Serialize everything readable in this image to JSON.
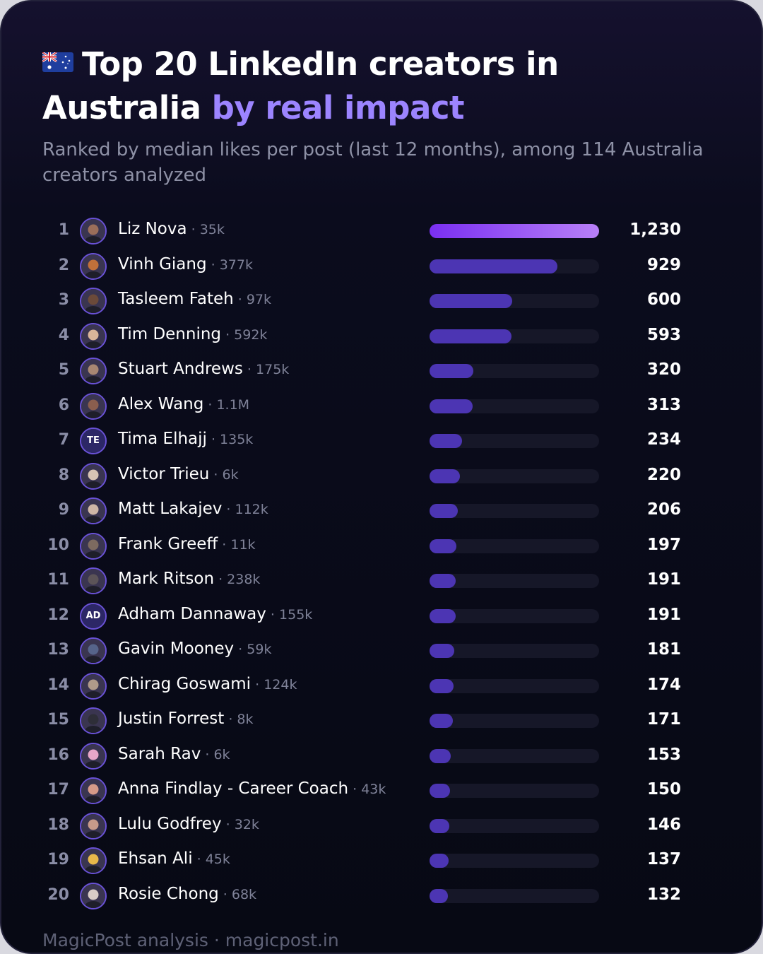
{
  "header": {
    "flag_icon": "australia-flag",
    "title_main": "Top 20 LinkedIn creators in Australia",
    "title_accent": "by real impact",
    "subtitle": "Ranked by median likes per post (last 12 months), among 114 Australia creators analyzed"
  },
  "colors": {
    "background": "#0b0c1d",
    "accent": "#9c84ff",
    "bar_top": "#8b3cf5",
    "bar": "#4c35b3",
    "track": "#161728"
  },
  "chart_data": {
    "type": "bar",
    "orientation": "horizontal",
    "title": "Top 20 LinkedIn creators in Australia by real impact",
    "subtitle": "Ranked by median likes per post (last 12 months), among 114 Australia creators analyzed",
    "xlim": [
      0,
      1230
    ],
    "grid": false,
    "categories": [
      "Liz Nova",
      "Vinh Giang",
      "Tasleem Fateh",
      "Tim Denning",
      "Stuart Andrews",
      "Alex Wang",
      "Tima Elhajj",
      "Victor Trieu",
      "Matt Lakajev",
      "Frank Greeff",
      "Mark Ritson",
      "Adham Dannaway",
      "Gavin Mooney",
      "Chirag Goswami",
      "Justin Forrest",
      "Sarah Rav",
      "Anna Findlay - Career Coach",
      "Lulu Godfrey",
      "Ehsan Ali",
      "Rosie Chong"
    ],
    "values": [
      1230,
      929,
      600,
      593,
      320,
      313,
      234,
      220,
      206,
      197,
      191,
      191,
      181,
      174,
      171,
      153,
      150,
      146,
      137,
      132
    ],
    "rows": [
      {
        "rank": "1",
        "name": "Liz Nova",
        "followers": "35k",
        "value": 1230,
        "value_label": "1,230",
        "avatar": "photo-avatar",
        "avatar_color": "#9b6e5a"
      },
      {
        "rank": "2",
        "name": "Vinh Giang",
        "followers": "377k",
        "value": 929,
        "value_label": "929",
        "avatar": "photo-avatar",
        "avatar_color": "#c0703a"
      },
      {
        "rank": "3",
        "name": "Tasleem Fateh",
        "followers": "97k",
        "value": 600,
        "value_label": "600",
        "avatar": "photo-avatar",
        "avatar_color": "#6b4a3a"
      },
      {
        "rank": "4",
        "name": "Tim Denning",
        "followers": "592k",
        "value": 593,
        "value_label": "593",
        "avatar": "photo-avatar",
        "avatar_color": "#d9b59a"
      },
      {
        "rank": "5",
        "name": "Stuart Andrews",
        "followers": "175k",
        "value": 320,
        "value_label": "320",
        "avatar": "photo-avatar",
        "avatar_color": "#a88772"
      },
      {
        "rank": "6",
        "name": "Alex Wang",
        "followers": "1.1M",
        "value": 313,
        "value_label": "313",
        "avatar": "photo-avatar",
        "avatar_color": "#8a5e4e"
      },
      {
        "rank": "7",
        "name": "Tima Elhajj",
        "followers": "135k",
        "value": 234,
        "value_label": "234",
        "avatar": "initials",
        "initials": "TE"
      },
      {
        "rank": "8",
        "name": "Victor Trieu",
        "followers": "6k",
        "value": 220,
        "value_label": "220",
        "avatar": "photo-avatar",
        "avatar_color": "#d6c3b4"
      },
      {
        "rank": "9",
        "name": "Matt Lakajev",
        "followers": "112k",
        "value": 206,
        "value_label": "206",
        "avatar": "photo-avatar",
        "avatar_color": "#cfb7a6"
      },
      {
        "rank": "10",
        "name": "Frank Greeff",
        "followers": "11k",
        "value": 197,
        "value_label": "197",
        "avatar": "photo-avatar",
        "avatar_color": "#7d6a60"
      },
      {
        "rank": "11",
        "name": "Mark Ritson",
        "followers": "238k",
        "value": 191,
        "value_label": "191",
        "avatar": "photo-avatar",
        "avatar_color": "#5c5458"
      },
      {
        "rank": "12",
        "name": "Adham Dannaway",
        "followers": "155k",
        "value": 191,
        "value_label": "191",
        "avatar": "initials",
        "initials": "AD"
      },
      {
        "rank": "13",
        "name": "Gavin Mooney",
        "followers": "59k",
        "value": 181,
        "value_label": "181",
        "avatar": "photo-avatar",
        "avatar_color": "#56648a"
      },
      {
        "rank": "14",
        "name": "Chirag Goswami",
        "followers": "124k",
        "value": 174,
        "value_label": "174",
        "avatar": "photo-avatar",
        "avatar_color": "#b09a8a"
      },
      {
        "rank": "15",
        "name": "Justin Forrest",
        "followers": "8k",
        "value": 171,
        "value_label": "171",
        "avatar": "photo-avatar",
        "avatar_color": "#2e2e38"
      },
      {
        "rank": "16",
        "name": "Sarah Rav",
        "followers": "6k",
        "value": 153,
        "value_label": "153",
        "avatar": "photo-avatar",
        "avatar_color": "#e7a6c8"
      },
      {
        "rank": "17",
        "name": "Anna Findlay - Career Coach",
        "followers": "43k",
        "value": 150,
        "value_label": "150",
        "avatar": "photo-avatar",
        "avatar_color": "#d69a88"
      },
      {
        "rank": "18",
        "name": "Lulu Godfrey",
        "followers": "32k",
        "value": 146,
        "value_label": "146",
        "avatar": "photo-avatar",
        "avatar_color": "#c79a8a"
      },
      {
        "rank": "19",
        "name": "Ehsan Ali",
        "followers": "45k",
        "value": 137,
        "value_label": "137",
        "avatar": "photo-avatar",
        "avatar_color": "#e8b84a"
      },
      {
        "rank": "20",
        "name": "Rosie Chong",
        "followers": "68k",
        "value": 132,
        "value_label": "132",
        "avatar": "photo-avatar",
        "avatar_color": "#d8ccc6"
      }
    ]
  },
  "footer": {
    "text": "MagicPost analysis · magicpost.in"
  }
}
